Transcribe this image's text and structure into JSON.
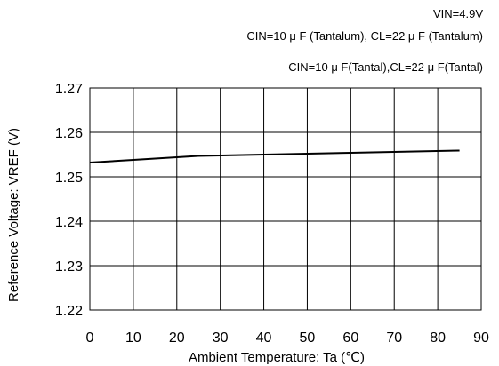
{
  "header": {
    "line1": "VIN=4.9V",
    "line2": "CIN=10 μ F (Tantalum), CL=22 μ F (Tantalum)",
    "line3": "CIN=10 μ F(Tantal),CL=22 μ F(Tantal)"
  },
  "chart_data": {
    "type": "line",
    "title": "",
    "xlabel": "Ambient Temperature: Ta (℃)",
    "ylabel": "Reference Voltage: VREF  (V)",
    "xlim": [
      0,
      90
    ],
    "ylim": [
      1.22,
      1.27
    ],
    "xticks": [
      0,
      10,
      20,
      30,
      40,
      50,
      60,
      70,
      80,
      90
    ],
    "yticks": [
      1.22,
      1.23,
      1.24,
      1.25,
      1.26,
      1.27
    ],
    "ytick_labels": [
      "1.22",
      "1.23",
      "1.24",
      "1.25",
      "1.26",
      "1.27"
    ],
    "grid": true,
    "series": [
      {
        "x": [
          0,
          10,
          20,
          25,
          40,
          60,
          85
        ],
        "y": [
          1.2532,
          1.2538,
          1.2544,
          1.2547,
          1.255,
          1.2554,
          1.2559
        ]
      }
    ],
    "colors": {
      "line": "#000000",
      "grid": "#000000"
    }
  }
}
